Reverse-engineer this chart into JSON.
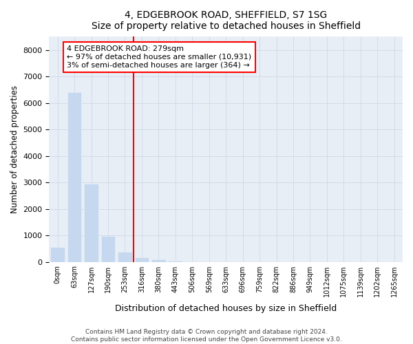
{
  "title1": "4, EDGEBROOK ROAD, SHEFFIELD, S7 1SG",
  "title2": "Size of property relative to detached houses in Sheffield",
  "xlabel": "Distribution of detached houses by size in Sheffield",
  "ylabel": "Number of detached properties",
  "categories": [
    "0sqm",
    "63sqm",
    "127sqm",
    "190sqm",
    "253sqm",
    "316sqm",
    "380sqm",
    "443sqm",
    "506sqm",
    "569sqm",
    "633sqm",
    "696sqm",
    "759sqm",
    "822sqm",
    "886sqm",
    "949sqm",
    "1012sqm",
    "1075sqm",
    "1139sqm",
    "1202sqm",
    "1265sqm"
  ],
  "values": [
    550,
    6400,
    2950,
    975,
    380,
    175,
    85,
    50,
    20,
    5,
    3,
    2,
    1,
    0,
    0,
    0,
    0,
    0,
    0,
    0,
    0
  ],
  "bar_color": "#c5d8ef",
  "property_line_x": 4.5,
  "annotation_text1": "4 EDGEBROOK ROAD: 279sqm",
  "annotation_text2": "← 97% of detached houses are smaller (10,931)",
  "annotation_text3": "3% of semi-detached houses are larger (364) →",
  "ylim": [
    0,
    8500
  ],
  "yticks": [
    0,
    1000,
    2000,
    3000,
    4000,
    5000,
    6000,
    7000,
    8000
  ],
  "footer1": "Contains HM Land Registry data © Crown copyright and database right 2024.",
  "footer2": "Contains public sector information licensed under the Open Government Licence v3.0.",
  "grid_color": "#d0d8e8",
  "plot_bg_color": "#e8eef5",
  "fig_bg_color": "#ffffff"
}
